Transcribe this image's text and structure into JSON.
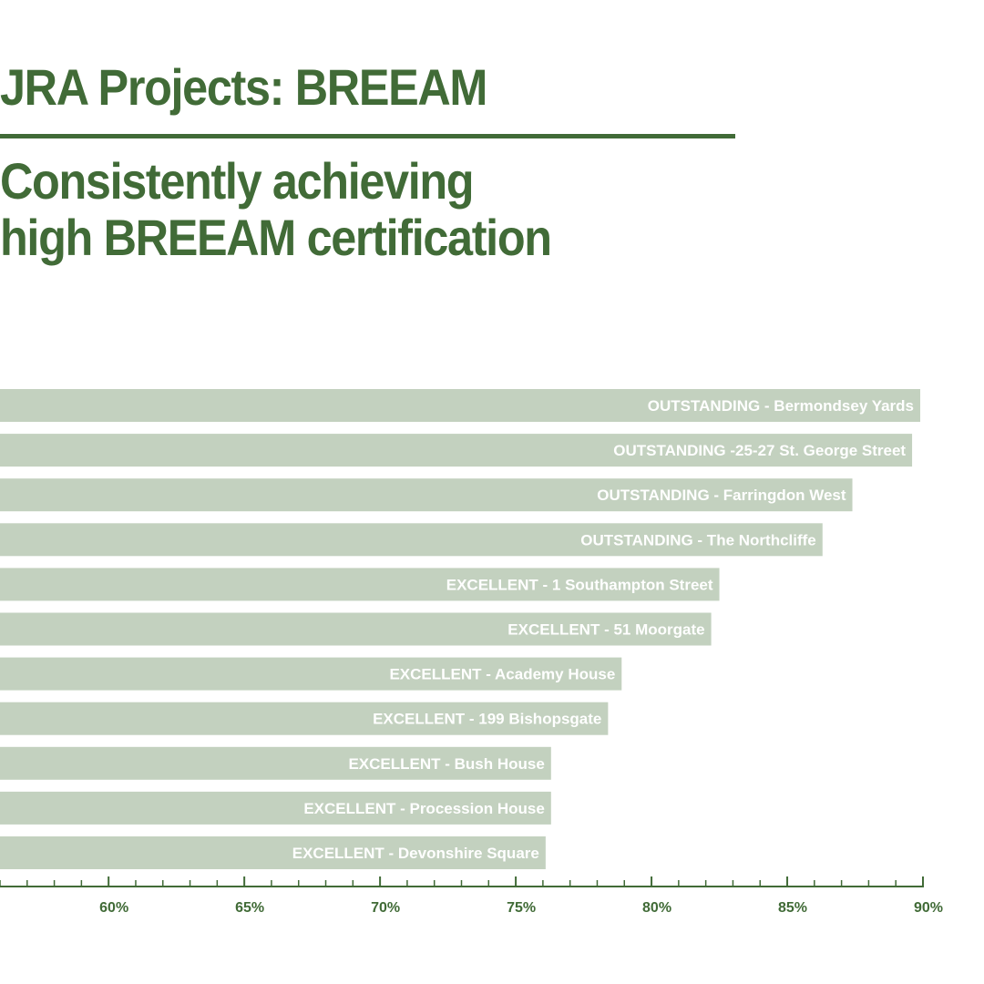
{
  "header": {
    "title": "JRA Projects: BREEAM",
    "subtitle": "Consistently achieving high BREEAM certification"
  },
  "colors": {
    "accent": "#416b37",
    "bar": "#c3d1bf",
    "bar_label": "#ffffff"
  },
  "chart_data": {
    "type": "bar",
    "orientation": "horizontal",
    "categories": [
      "OUTSTANDING - Bermondsey Yards",
      "OUTSTANDING -25-27 St. George Street",
      "OUTSTANDING - Farringdon West",
      "OUTSTANDING - The Northcliffe",
      "EXCELLENT - 1 Southampton Street",
      "EXCELLENT - 51 Moorgate",
      "EXCELLENT - Academy House",
      "EXCELLENT - 199 Bishopsgate",
      "EXCELLENT - Bush House",
      "EXCELLENT - Procession House",
      "EXCELLENT - Devonshire Square"
    ],
    "values": [
      89.9,
      89.6,
      87.4,
      86.3,
      82.5,
      82.2,
      78.9,
      78.4,
      76.3,
      76.3,
      76.1
    ],
    "x_ticks": [
      60,
      65,
      70,
      75,
      80,
      85,
      90
    ],
    "x_tick_labels": [
      "60%",
      "65%",
      "70%",
      "75%",
      "80%",
      "85%",
      "90%"
    ],
    "xlim": [
      56,
      90
    ],
    "minor_tick_step": 1,
    "title": "JRA Projects: BREEAM",
    "subtitle": "Consistently achieving high BREEAM certification",
    "xlabel": "",
    "ylabel": "",
    "grid": false,
    "legend": "none"
  }
}
